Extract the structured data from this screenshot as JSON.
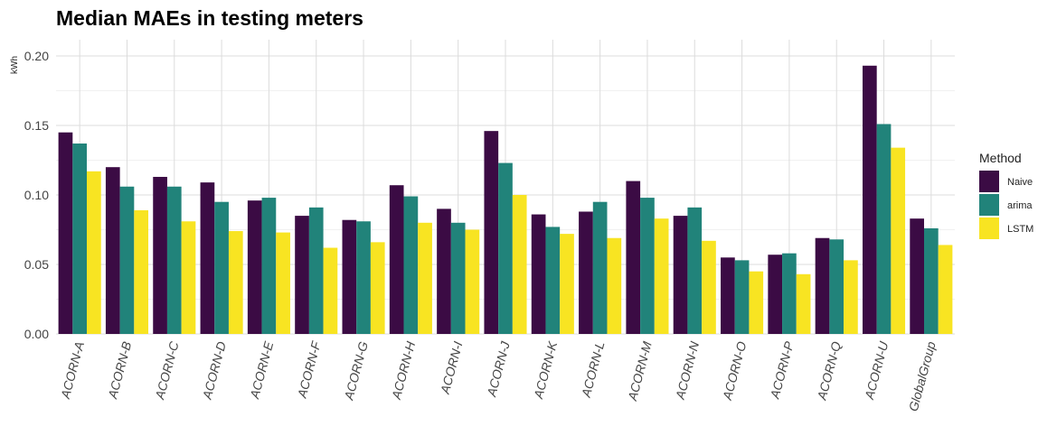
{
  "chart_data": {
    "type": "bar",
    "title": "Median MAEs in testing meters",
    "ylabel": "kWh",
    "xlabel": "",
    "ylim": [
      0,
      0.21
    ],
    "yticks": [
      "0.00",
      "0.05",
      "0.10",
      "0.15",
      "0.20"
    ],
    "grid": true,
    "legend_position": "right",
    "legend_title": "Method",
    "categories": [
      "ACORN-A",
      "ACORN-B",
      "ACORN-C",
      "ACORN-D",
      "ACORN-E",
      "ACORN-F",
      "ACORN-G",
      "ACORN-H",
      "ACORN-I",
      "ACORN-J",
      "ACORN-K",
      "ACORN-L",
      "ACORN-M",
      "ACORN-N",
      "ACORN-O",
      "ACORN-P",
      "ACORN-Q",
      "ACORN-U",
      "GlobalGroup"
    ],
    "series": [
      {
        "name": "Naive",
        "color": "#3b0b44",
        "values": [
          0.145,
          0.12,
          0.113,
          0.109,
          0.096,
          0.085,
          0.082,
          0.107,
          0.09,
          0.146,
          0.086,
          0.088,
          0.11,
          0.085,
          0.055,
          0.057,
          0.069,
          0.193,
          0.083
        ]
      },
      {
        "name": "arima",
        "color": "#21837a",
        "values": [
          0.137,
          0.106,
          0.106,
          0.095,
          0.098,
          0.091,
          0.081,
          0.099,
          0.08,
          0.123,
          0.077,
          0.095,
          0.098,
          0.091,
          0.053,
          0.058,
          0.068,
          0.151,
          0.076
        ]
      },
      {
        "name": "LSTM",
        "color": "#f8e422",
        "values": [
          0.117,
          0.089,
          0.081,
          0.074,
          0.073,
          0.062,
          0.066,
          0.08,
          0.075,
          0.1,
          0.072,
          0.069,
          0.083,
          0.067,
          0.045,
          0.043,
          0.053,
          0.134,
          0.064
        ]
      }
    ]
  }
}
